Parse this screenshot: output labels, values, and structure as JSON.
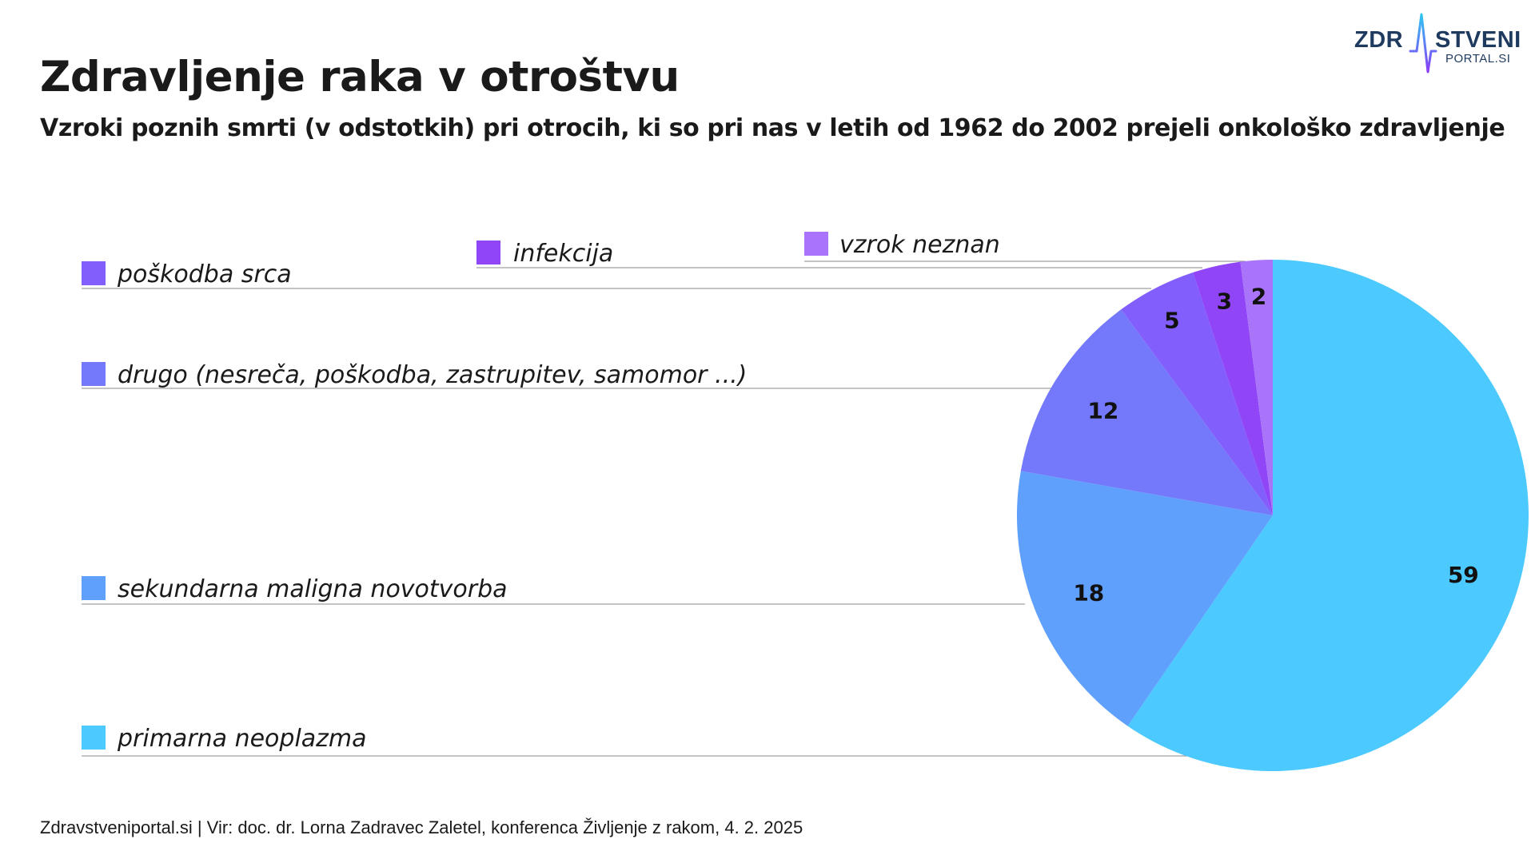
{
  "header": {
    "title": "Zdravljenje raka v otroštvu",
    "subtitle": "Vzroki poznih smrti (v odstotkih) pri otrocih, ki so pri nas v letih od 1962 do 2002 prejeli onkološko zdravljenje"
  },
  "logo": {
    "text_left": "ZDR",
    "text_right": "STVENI",
    "text_sub": "PORTAL.SI",
    "color": "#1f3a5f",
    "accent_gradient": [
      "#2ec5f0",
      "#8b3cf7"
    ]
  },
  "chart_data": {
    "type": "pie",
    "start": "12 o'clock",
    "direction": "clockwise",
    "slices": [
      {
        "label": "primarna neoplazma",
        "value": 59,
        "color": "#4cc9fe"
      },
      {
        "label": "sekundarna maligna novotvorba",
        "value": 18,
        "color": "#5fa0fd"
      },
      {
        "label": "drugo (nesreča, poškodba, zastrupitev, samomor ...)",
        "value": 12,
        "color": "#7479fb"
      },
      {
        "label": "poškodba srca",
        "value": 5,
        "color": "#825efc"
      },
      {
        "label": "infekcija",
        "value": 3,
        "color": "#9046f7"
      },
      {
        "label": "vzrok neznan",
        "value": 2,
        "color": "#a974fa"
      }
    ],
    "legend": "left, with leader lines to slices"
  },
  "footer": {
    "source": "Zdravstveniportal.si | Vir: doc. dr. Lorna Zadravec Zaletel, konferenca Življenje z rakom, 4. 2. 2025"
  }
}
